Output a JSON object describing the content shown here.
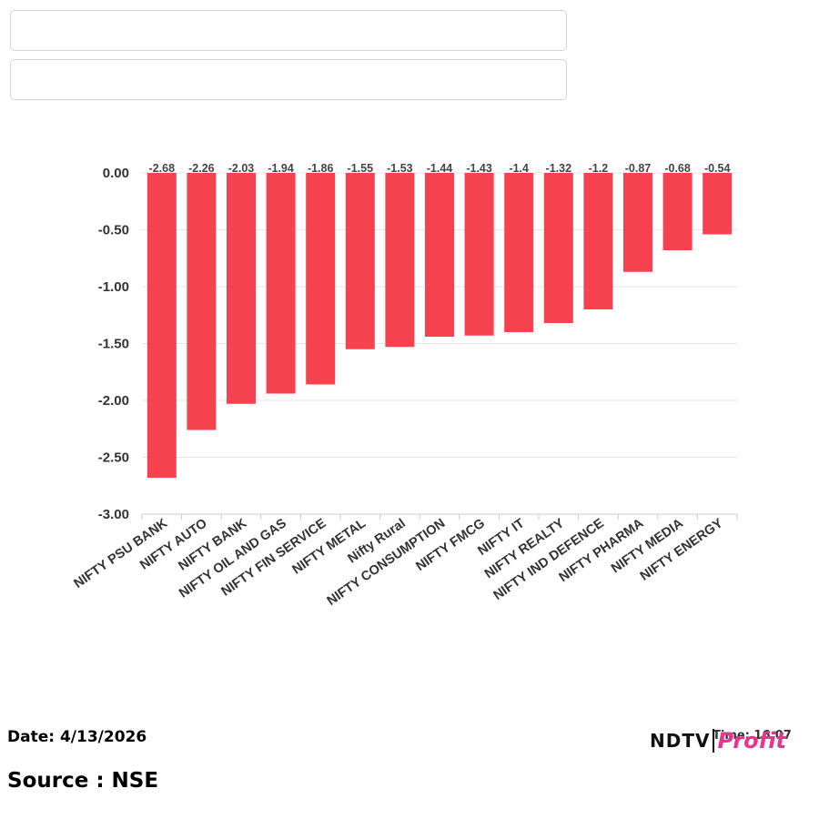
{
  "chart_data": {
    "type": "bar",
    "title": "",
    "xlabel": "",
    "ylabel": "",
    "categories": [
      "NIFTY PSU BANK",
      "NIFTY AUTO",
      "NIFTY BANK",
      "NIFTY OIL AND GAS",
      "NIFTY FIN SERVICE",
      "NIFTY METAL",
      "Nifty Rural",
      "NIFTY CONSUMPTION",
      "NIFTY FMCG",
      "NIFTY IT",
      "NIFTY REALTY",
      "NIFTY IND DEFENCE",
      "NIFTY PHARMA",
      "NIFTY MEDIA",
      "NIFTY ENERGY"
    ],
    "values": [
      -2.68,
      -2.26,
      -2.03,
      -1.94,
      -1.86,
      -1.55,
      -1.53,
      -1.44,
      -1.43,
      -1.4,
      -1.32,
      -1.2,
      -0.87,
      -0.68,
      -0.54
    ],
    "data_labels": [
      "-2.68",
      "-2.26",
      "-2.03",
      "-1.94",
      "-1.86",
      "-1.55",
      "-1.53",
      "-1.44",
      "-1.43",
      "-1.4",
      "-1.32",
      "-1.2",
      "-0.87",
      "-0.68",
      "-0.54"
    ],
    "ylim": [
      -3.0,
      0.0
    ],
    "yticks": [
      0,
      -0.5,
      -1.0,
      -1.5,
      -2.0,
      -2.5,
      -3.0
    ],
    "ytick_labels": [
      "0.00",
      "-0.50",
      "-1.00",
      "-1.50",
      "-2.00",
      "-2.50",
      "-3.00"
    ],
    "bar_color": "#f5424e",
    "grid": true,
    "legend": "none"
  },
  "footer": {
    "date": "Date: 4/13/2026",
    "source": "Source : NSE",
    "time": "Time: 16:07"
  },
  "logo": {
    "ndtv": "NDTV",
    "profit": "Profit"
  }
}
